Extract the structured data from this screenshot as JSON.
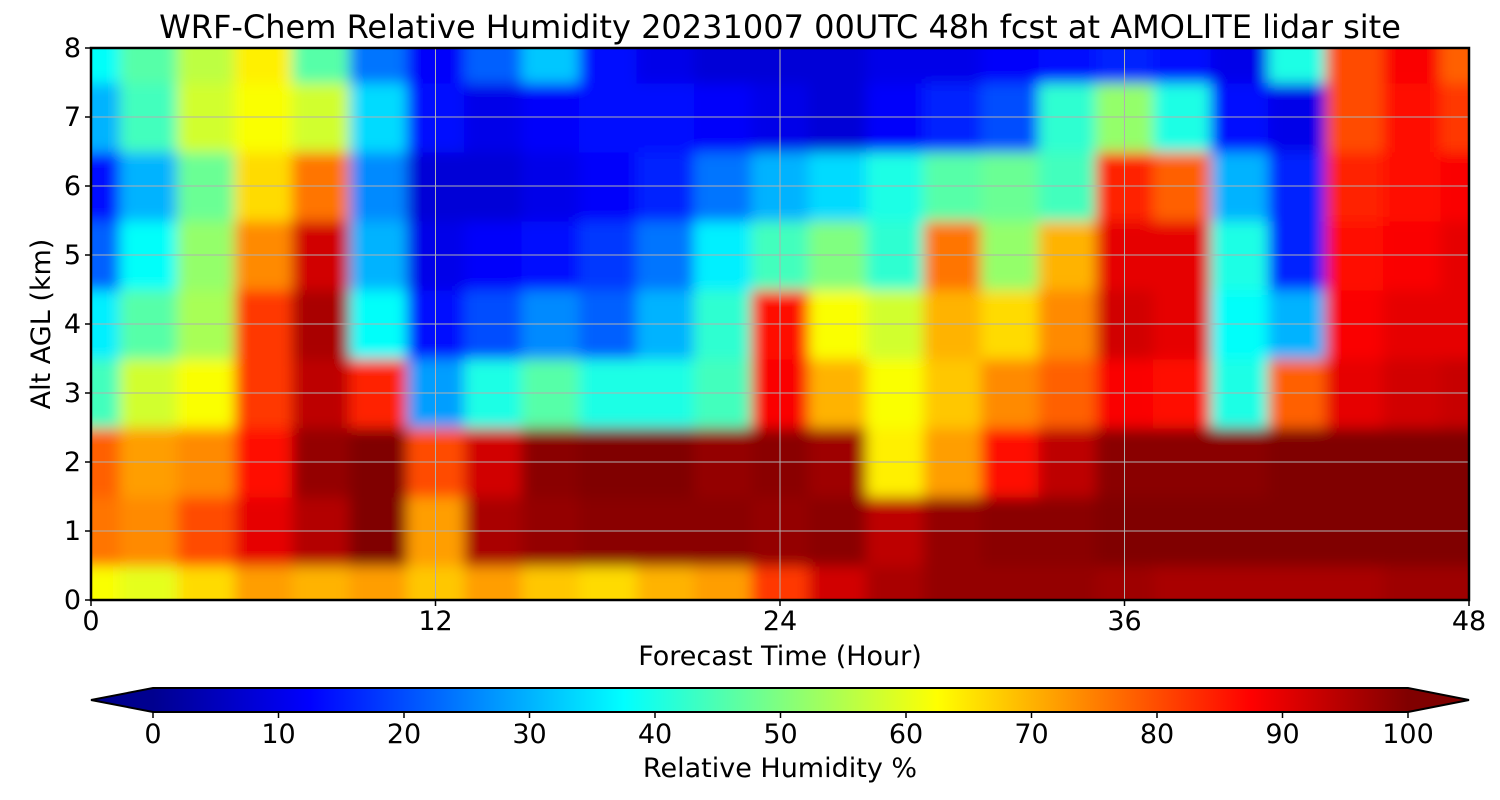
{
  "chart_data": {
    "type": "heatmap",
    "title": "WRF-Chem Relative Humidity 20231007 00UTC 48h fcst at AMOLITE lidar site",
    "xlabel": "Forecast Time (Hour)",
    "ylabel": "Alt AGL (km)",
    "xlim": [
      0,
      48
    ],
    "ylim": [
      0,
      8
    ],
    "x_ticks": [
      "0",
      "12",
      "24",
      "36",
      "48"
    ],
    "y_ticks": [
      "0",
      "1",
      "2",
      "3",
      "4",
      "5",
      "6",
      "7",
      "8"
    ],
    "grid": true,
    "colorscale": "jet",
    "colorbar": {
      "label": "Relative Humidity %",
      "range": [
        0,
        100
      ],
      "ticks": [
        "0",
        "10",
        "20",
        "30",
        "40",
        "50",
        "60",
        "70",
        "80",
        "90",
        "100"
      ],
      "extend": "both",
      "orientation": "horizontal"
    },
    "x": [
      0,
      2,
      4,
      6,
      8,
      10,
      12,
      14,
      16,
      18,
      20,
      22,
      24,
      26,
      28,
      30,
      32,
      34,
      36,
      38,
      40,
      42,
      44,
      46,
      48
    ],
    "y": [
      0,
      1,
      2,
      3,
      4,
      5,
      6,
      7,
      8
    ],
    "z": [
      [
        62,
        60,
        66,
        72,
        70,
        72,
        68,
        72,
        68,
        66,
        70,
        72,
        82,
        92,
        96,
        98,
        98,
        98,
        97,
        96,
        96,
        96,
        96,
        97,
        97
      ],
      [
        76,
        74,
        80,
        90,
        95,
        100,
        72,
        96,
        98,
        99,
        99,
        99,
        98,
        99,
        94,
        98,
        99,
        99,
        100,
        100,
        100,
        100,
        100,
        100,
        100
      ],
      [
        78,
        72,
        74,
        86,
        98,
        100,
        80,
        92,
        99,
        100,
        100,
        98,
        99,
        97,
        64,
        72,
        86,
        94,
        99,
        99,
        99,
        100,
        100,
        100,
        100
      ],
      [
        44,
        58,
        62,
        82,
        94,
        84,
        28,
        40,
        46,
        40,
        40,
        44,
        88,
        70,
        62,
        68,
        74,
        78,
        88,
        86,
        40,
        78,
        90,
        92,
        93
      ],
      [
        36,
        46,
        54,
        82,
        96,
        38,
        14,
        20,
        26,
        22,
        30,
        42,
        86,
        62,
        58,
        70,
        66,
        74,
        92,
        90,
        38,
        30,
        88,
        90,
        90
      ],
      [
        22,
        38,
        52,
        74,
        92,
        30,
        10,
        12,
        14,
        18,
        24,
        36,
        44,
        50,
        42,
        76,
        52,
        70,
        90,
        90,
        40,
        16,
        86,
        88,
        90
      ],
      [
        14,
        30,
        48,
        66,
        76,
        26,
        8,
        8,
        10,
        12,
        16,
        24,
        30,
        34,
        40,
        46,
        48,
        44,
        84,
        78,
        30,
        16,
        84,
        86,
        88
      ],
      [
        30,
        44,
        58,
        62,
        58,
        34,
        14,
        10,
        12,
        14,
        14,
        12,
        10,
        8,
        12,
        16,
        20,
        42,
        52,
        40,
        14,
        10,
        80,
        86,
        82
      ],
      [
        38,
        46,
        56,
        64,
        46,
        24,
        12,
        22,
        32,
        14,
        10,
        8,
        8,
        8,
        10,
        10,
        12,
        14,
        16,
        14,
        10,
        40,
        80,
        88,
        78
      ]
    ]
  }
}
